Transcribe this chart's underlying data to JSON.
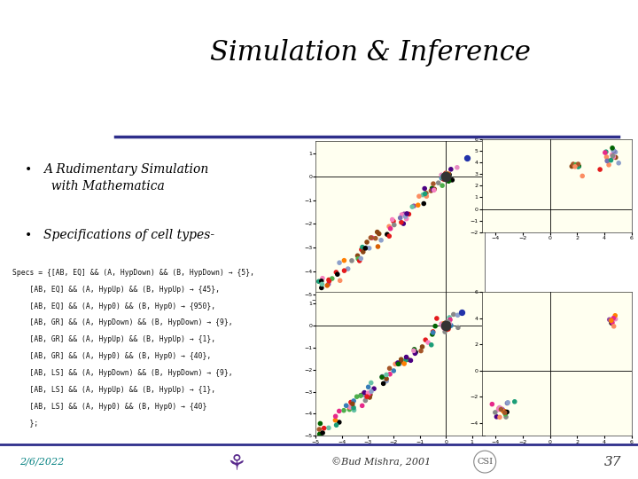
{
  "title": "Simulation & Inference",
  "slide_bg": "#ffffff",
  "title_font": "serif",
  "title_size": 22,
  "title_color": "#000000",
  "header_line_color": "#2e2e8b",
  "bullet_points": [
    "A Rudimentary Simulation\n  with Mathematica",
    "Specifications of cell types-"
  ],
  "bullet_color": "#000000",
  "bullet_font": "serif",
  "bullet_size": 10,
  "footer_date": "2/6/2022",
  "footer_copyright": "©Bud Mishra, 2001",
  "footer_page": "37",
  "footer_color": "#008080",
  "plot_bg": "#fffff0",
  "code_lines": [
    "Specs = {[AB, EQ] && (A, HypDown) && (B, HypDown) → {5},",
    "    [AB, EQ] && (A, HypUp) && (B, HypUp) → {45},",
    "    [AB, EQ] && (A, Hyp0) && (B, Hyp0) → {950},",
    "    [AB, GR] && (A, HypDown) && (B, HypDown) → {9},",
    "    [AB, GR] && (A, HypUp) && (B, HypUp) → {1},",
    "    [AB, GR] && (A, Hyp0) && (B, Hyp0) → {40},",
    "    [AB, LS] && (A, HypDown) && (B, HypDown) → {9},",
    "    [AB, LS] && (A, HypUp) && (B, HypUp) → {1},",
    "    [AB, LS] && (A, Hyp0) && (B, Hyp0) → {40}",
    "    };"
  ],
  "scatter_colors": [
    "#e41a1c",
    "#377eb8",
    "#4daf4a",
    "#984ea3",
    "#ff7f00",
    "#a65628",
    "#f781bf",
    "#888888",
    "#66c2a5",
    "#fc8d62",
    "#8da0cb",
    "#e78ac3",
    "#1b9e77",
    "#d95f02",
    "#7570b3",
    "#e7298a",
    "#000000",
    "#8B4513",
    "#006400",
    "#4B0082"
  ]
}
